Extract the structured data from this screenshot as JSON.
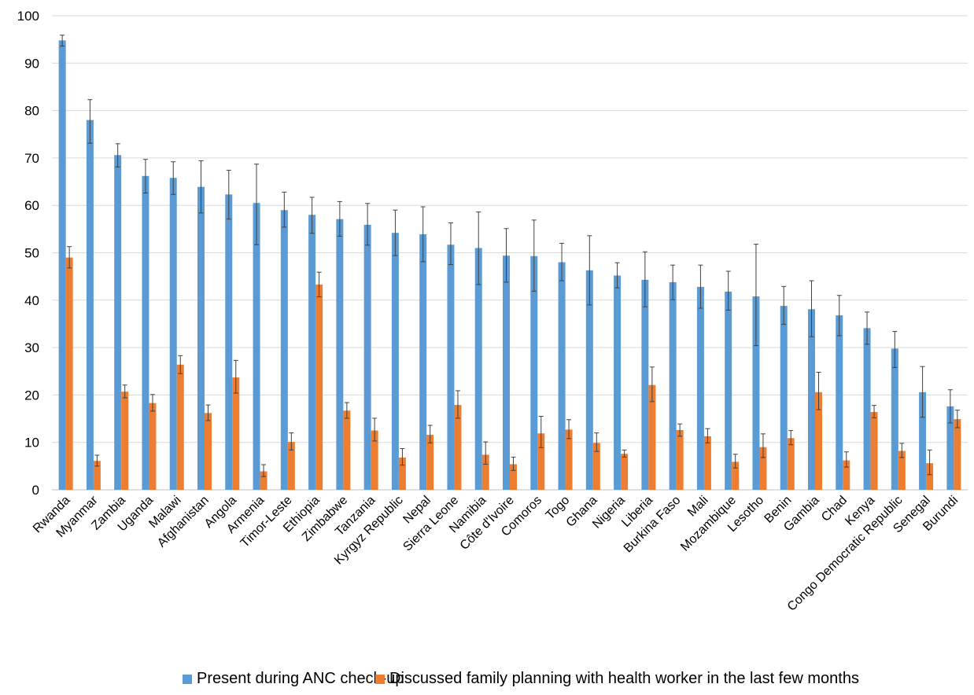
{
  "chart_data": {
    "type": "bar",
    "ylim": [
      0,
      100
    ],
    "yticks": [
      0,
      10,
      20,
      30,
      40,
      50,
      60,
      70,
      80,
      90,
      100
    ],
    "grid": true,
    "legend_position": "bottom",
    "categories": [
      "Rwanda",
      "Myanmar",
      "Zambia",
      "Uganda",
      "Malawi",
      "Afghanistan",
      "Angola",
      "Armenia",
      "Timor-Leste",
      "Ethiopia",
      "Zimbabwe",
      "Tanzania",
      "Kyrgyz Republic",
      "Nepal",
      "Sierra Leone",
      "Namibia",
      "Côte d'Ivoire",
      "Comoros",
      "Togo",
      "Ghana",
      "Nigeria",
      "Liberia",
      "Burkina Faso",
      "Mali",
      "Mozambique",
      "Lesotho",
      "Benin",
      "Gambia",
      "Chad",
      "Kenya",
      "Congo Democratic Republic",
      "Senegal",
      "Burundi"
    ],
    "series": [
      {
        "name": "Present during ANC check-up",
        "color": "#5B9BD5",
        "values": [
          94.8,
          78.0,
          70.6,
          66.2,
          65.8,
          63.9,
          62.3,
          60.5,
          59.0,
          58.0,
          57.1,
          55.9,
          54.2,
          53.9,
          51.7,
          51.0,
          49.4,
          49.3,
          48.0,
          46.3,
          45.2,
          44.3,
          43.8,
          42.8,
          41.8,
          40.8,
          38.8,
          38.1,
          36.8,
          34.1,
          29.8,
          20.6,
          17.6
        ],
        "err_low": [
          93.6,
          73.1,
          68.1,
          62.6,
          62.3,
          58.4,
          57.1,
          51.7,
          55.4,
          54.1,
          53.5,
          51.6,
          49.4,
          48.1,
          47.5,
          43.3,
          43.8,
          41.9,
          44.1,
          39.0,
          42.6,
          38.6,
          40.1,
          38.3,
          37.9,
          30.4,
          34.9,
          32.3,
          32.5,
          30.7,
          25.8,
          15.3,
          14.1
        ],
        "err_high": [
          95.9,
          82.3,
          73.0,
          69.7,
          69.2,
          69.4,
          67.4,
          68.7,
          62.8,
          61.7,
          60.8,
          60.4,
          59.0,
          59.7,
          56.3,
          58.6,
          55.1,
          56.9,
          52.0,
          53.6,
          47.9,
          50.2,
          47.4,
          47.4,
          46.1,
          51.8,
          42.9,
          44.1,
          41.0,
          37.5,
          33.4,
          26.0,
          21.1
        ]
      },
      {
        "name": "Discussed family planning with health worker in the last few months",
        "color": "#ED7D31",
        "values": [
          49.0,
          6.1,
          20.7,
          18.3,
          26.4,
          16.2,
          23.7,
          3.9,
          10.1,
          43.3,
          16.7,
          12.5,
          6.8,
          11.6,
          17.9,
          7.4,
          5.4,
          11.9,
          12.7,
          9.9,
          7.6,
          22.1,
          12.6,
          11.3,
          5.9,
          9.0,
          10.9,
          20.6,
          6.2,
          16.4,
          8.2,
          5.6,
          14.9
        ],
        "err_low": [
          46.8,
          5.0,
          19.4,
          16.6,
          24.5,
          14.6,
          20.4,
          2.8,
          8.4,
          40.7,
          15.1,
          10.3,
          5.2,
          9.9,
          15.1,
          5.4,
          4.1,
          8.9,
          10.8,
          8.1,
          6.9,
          18.6,
          11.3,
          9.9,
          4.6,
          6.8,
          9.5,
          16.9,
          4.8,
          15.2,
          6.8,
          3.2,
          13.1
        ],
        "err_high": [
          51.3,
          7.3,
          22.1,
          20.1,
          28.3,
          17.9,
          27.3,
          5.3,
          12.0,
          45.9,
          18.4,
          15.1,
          8.7,
          13.6,
          20.9,
          10.1,
          6.9,
          15.5,
          14.8,
          12.0,
          8.4,
          25.9,
          13.9,
          12.9,
          7.5,
          11.8,
          12.5,
          24.8,
          8.0,
          17.8,
          9.8,
          8.4,
          16.8
        ]
      }
    ]
  }
}
